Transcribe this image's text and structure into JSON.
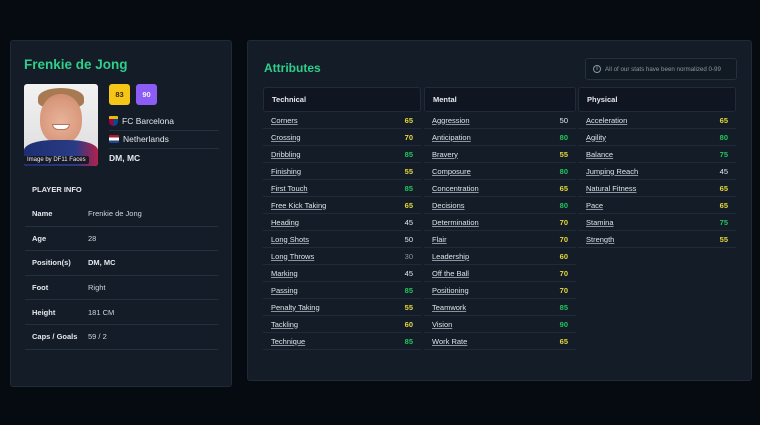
{
  "player": {
    "name": "Frenkie de Jong",
    "photo_credit": "Image by DF11 Faces",
    "current_rating": "83",
    "potential_rating": "90",
    "club": "FC Barcelona",
    "nationality": "Netherlands",
    "positions": "DM, MC"
  },
  "player_info": {
    "title": "PLAYER INFO",
    "rows": [
      {
        "label": "Name",
        "value": "Frenkie de Jong"
      },
      {
        "label": "Age",
        "value": "28"
      },
      {
        "label": "Position(s)",
        "value": "DM, MC"
      },
      {
        "label": "Foot",
        "value": "Right"
      },
      {
        "label": "Height",
        "value": "181 CM"
      },
      {
        "label": "Caps / Goals",
        "value": "59 / 2"
      }
    ]
  },
  "attributes": {
    "title": "Attributes",
    "note": "All of our stats have been normalized 0-99",
    "colors": {
      "high": "#22c55e",
      "mid": "#e6d83b",
      "low": "#e6e9ee",
      "very_low": "#8b96a3"
    },
    "technical": {
      "label": "Technical",
      "items": [
        {
          "name": "Corners",
          "value": "65",
          "tier": "yellow"
        },
        {
          "name": "Crossing",
          "value": "70",
          "tier": "yellow"
        },
        {
          "name": "Dribbling",
          "value": "85",
          "tier": "green"
        },
        {
          "name": "Finishing",
          "value": "55",
          "tier": "yellow"
        },
        {
          "name": "First Touch",
          "value": "85",
          "tier": "green"
        },
        {
          "name": "Free Kick Taking",
          "value": "65",
          "tier": "yellow"
        },
        {
          "name": "Heading",
          "value": "45",
          "tier": "white"
        },
        {
          "name": "Long Shots",
          "value": "50",
          "tier": "white"
        },
        {
          "name": "Long Throws",
          "value": "30",
          "tier": "grey"
        },
        {
          "name": "Marking",
          "value": "45",
          "tier": "white"
        },
        {
          "name": "Passing",
          "value": "85",
          "tier": "green"
        },
        {
          "name": "Penalty Taking",
          "value": "55",
          "tier": "yellow"
        },
        {
          "name": "Tackling",
          "value": "60",
          "tier": "yellow"
        },
        {
          "name": "Technique",
          "value": "85",
          "tier": "green"
        }
      ]
    },
    "mental": {
      "label": "Mental",
      "items": [
        {
          "name": "Aggression",
          "value": "50",
          "tier": "white"
        },
        {
          "name": "Anticipation",
          "value": "80",
          "tier": "green"
        },
        {
          "name": "Bravery",
          "value": "55",
          "tier": "yellow"
        },
        {
          "name": "Composure",
          "value": "80",
          "tier": "green"
        },
        {
          "name": "Concentration",
          "value": "65",
          "tier": "yellow"
        },
        {
          "name": "Decisions",
          "value": "80",
          "tier": "green"
        },
        {
          "name": "Determination",
          "value": "70",
          "tier": "yellow"
        },
        {
          "name": "Flair",
          "value": "70",
          "tier": "yellow"
        },
        {
          "name": "Leadership",
          "value": "60",
          "tier": "yellow"
        },
        {
          "name": "Off the Ball",
          "value": "70",
          "tier": "yellow"
        },
        {
          "name": "Positioning",
          "value": "70",
          "tier": "yellow"
        },
        {
          "name": "Teamwork",
          "value": "85",
          "tier": "green"
        },
        {
          "name": "Vision",
          "value": "90",
          "tier": "green"
        },
        {
          "name": "Work Rate",
          "value": "65",
          "tier": "yellow"
        }
      ]
    },
    "physical": {
      "label": "Physical",
      "items": [
        {
          "name": "Acceleration",
          "value": "65",
          "tier": "yellow"
        },
        {
          "name": "Agility",
          "value": "80",
          "tier": "green"
        },
        {
          "name": "Balance",
          "value": "75",
          "tier": "green"
        },
        {
          "name": "Jumping Reach",
          "value": "45",
          "tier": "white"
        },
        {
          "name": "Natural Fitness",
          "value": "65",
          "tier": "yellow"
        },
        {
          "name": "Pace",
          "value": "65",
          "tier": "yellow"
        },
        {
          "name": "Stamina",
          "value": "75",
          "tier": "green"
        },
        {
          "name": "Strength",
          "value": "55",
          "tier": "yellow"
        }
      ]
    }
  }
}
